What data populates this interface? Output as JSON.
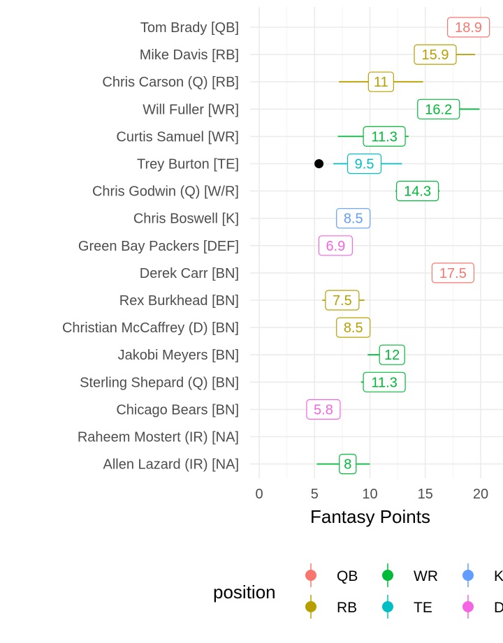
{
  "chart_data": {
    "type": "dot-interval",
    "xlabel": "Fantasy Points",
    "ylabel": "",
    "xlim": [
      -0.8,
      21.2
    ],
    "xticks": [
      0,
      5,
      10,
      15,
      20
    ],
    "grid": true,
    "legend": {
      "title": "position",
      "placement": "bottom",
      "entries": [
        {
          "key": "QB",
          "color": "#F8766D"
        },
        {
          "key": "RB",
          "color": "#B79F00"
        },
        {
          "key": "WR",
          "color": "#00BA38"
        },
        {
          "key": "TE",
          "color": "#00BFC4"
        },
        {
          "key": "K",
          "color": "#619CFF"
        },
        {
          "key": "D",
          "color": "#F564E3"
        }
      ]
    },
    "rows": [
      {
        "player": "Tom Brady [QB]",
        "position": "QB",
        "projection": 18.9,
        "label": "18.9",
        "low": 17.0,
        "high": 20.8,
        "actual": null
      },
      {
        "player": "Mike Davis [RB]",
        "position": "RB",
        "projection": 15.9,
        "label": "15.9",
        "low": 14.0,
        "high": 19.5,
        "actual": null
      },
      {
        "player": "Chris Carson (Q) [RB]",
        "position": "RB",
        "projection": 11,
        "label": "11",
        "low": 7.2,
        "high": 14.8,
        "actual": null
      },
      {
        "player": "Will Fuller [WR]",
        "position": "WR",
        "projection": 16.2,
        "label": "16.2",
        "low": 14.7,
        "high": 19.9,
        "actual": null
      },
      {
        "player": "Curtis Samuel [WR]",
        "position": "WR",
        "projection": 11.3,
        "label": "11.3",
        "low": 7.1,
        "high": 13.5,
        "actual": null
      },
      {
        "player": "Trey Burton [TE]",
        "position": "TE",
        "projection": 9.5,
        "label": "9.5",
        "low": 6.7,
        "high": 12.9,
        "actual": 5.4
      },
      {
        "player": "Chris Godwin (Q) [W/R]",
        "position": "WR",
        "projection": 14.3,
        "label": "14.3",
        "low": 12.3,
        "high": 16.3,
        "actual": null
      },
      {
        "player": "Chris Boswell [K]",
        "position": "K",
        "projection": 8.5,
        "label": "8.5",
        "low": 7.5,
        "high": 9.5,
        "actual": null
      },
      {
        "player": "Green Bay Packers [DEF]",
        "position": "D",
        "projection": 6.9,
        "label": "6.9",
        "low": 6.9,
        "high": 6.9,
        "actual": null
      },
      {
        "player": "Derek Carr [BN]",
        "position": "QB",
        "projection": 17.5,
        "label": "17.5",
        "low": 17.5,
        "high": 17.5,
        "actual": null
      },
      {
        "player": "Rex Burkhead [BN]",
        "position": "RB",
        "projection": 7.5,
        "label": "7.5",
        "low": 5.7,
        "high": 9.5,
        "actual": null
      },
      {
        "player": "Christian McCaffrey (D) [BN]",
        "position": "RB",
        "projection": 8.5,
        "label": "8.5",
        "low": 8.5,
        "high": 8.5,
        "actual": null
      },
      {
        "player": "Jakobi Meyers [BN]",
        "position": "WR",
        "projection": 12,
        "label": "12",
        "low": 9.8,
        "high": 12.5,
        "actual": null
      },
      {
        "player": "Sterling Shepard (Q) [BN]",
        "position": "WR",
        "projection": 11.3,
        "label": "11.3",
        "low": 9.2,
        "high": 12.3,
        "actual": null
      },
      {
        "player": "Chicago Bears [BN]",
        "position": "D",
        "projection": 5.8,
        "label": "5.8",
        "low": 5.8,
        "high": 5.8,
        "actual": null
      },
      {
        "player": "Raheem Mostert (IR) [NA]",
        "position": null,
        "projection": null,
        "label": "",
        "low": null,
        "high": null,
        "actual": null
      },
      {
        "player": "Allen Lazard (IR) [NA]",
        "position": "WR",
        "projection": 8,
        "label": "8",
        "low": 5.2,
        "high": 10.0,
        "actual": null
      }
    ]
  }
}
